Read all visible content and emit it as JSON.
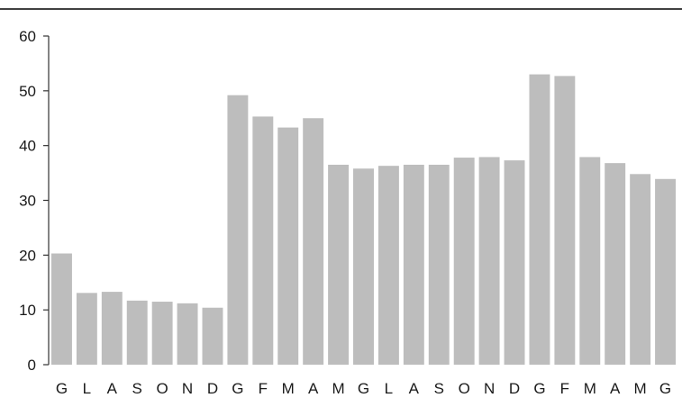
{
  "chart_data": {
    "type": "bar",
    "categories": [
      "G",
      "L",
      "A",
      "S",
      "O",
      "N",
      "D",
      "G",
      "F",
      "M",
      "A",
      "M",
      "G",
      "L",
      "A",
      "S",
      "O",
      "N",
      "D",
      "G",
      "F",
      "M",
      "A",
      "M",
      "G"
    ],
    "values": [
      20.3,
      13.1,
      13.3,
      11.7,
      11.5,
      11.2,
      10.4,
      49.2,
      45.3,
      43.3,
      45.0,
      36.5,
      35.8,
      36.3,
      36.5,
      36.5,
      37.8,
      37.9,
      37.3,
      53.0,
      52.7,
      37.9,
      36.8,
      34.8,
      33.9
    ],
    "title": "",
    "xlabel": "",
    "ylabel": "",
    "ylim": [
      0,
      60
    ],
    "yticks": [
      0,
      10,
      20,
      30,
      40,
      50,
      60
    ],
    "grid": false,
    "bar_color": "#bdbdbd",
    "axis_color": "#333333",
    "top_rule": true
  }
}
